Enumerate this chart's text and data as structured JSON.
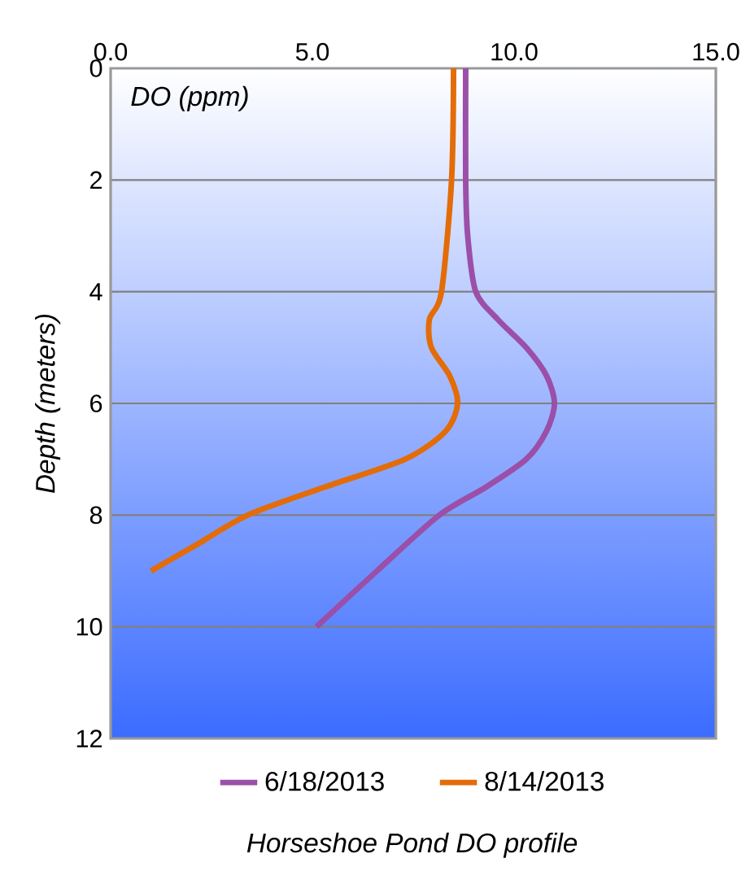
{
  "chart_data": {
    "type": "line",
    "title": "Horseshoe Pond DO profile",
    "xlabel": "DO (ppm)",
    "ylabel": "Depth (meters)",
    "xlim": [
      0,
      15
    ],
    "xticks": [
      {
        "value": 0,
        "label": "0.0"
      },
      {
        "value": 5,
        "label": "5.0"
      },
      {
        "value": 10,
        "label": "10.0"
      },
      {
        "value": 15,
        "label": "15.0"
      }
    ],
    "ylim": [
      12,
      0
    ],
    "yticks": [
      0,
      2,
      4,
      6,
      8,
      10,
      12
    ],
    "grid": "y",
    "legend": "bottom",
    "marker": "none",
    "line_style": "solid",
    "series": [
      {
        "name": "6/18/2013",
        "color": "#9b4fa8",
        "x": [
          8.8,
          8.8,
          8.85,
          9.05,
          9.6,
          10.3,
          10.8,
          11.0,
          10.8,
          10.3,
          9.3,
          8.15,
          6.6,
          5.1
        ],
        "values": [
          0,
          2,
          3,
          4,
          4.5,
          5,
          5.5,
          6,
          6.5,
          7,
          7.5,
          8,
          9,
          10
        ]
      },
      {
        "name": "8/14/2013",
        "color": "#e36c09",
        "x": [
          8.5,
          8.45,
          8.2,
          7.9,
          7.95,
          8.4,
          8.6,
          8.3,
          7.3,
          5.3,
          3.4,
          2.2,
          1.0
        ],
        "values": [
          0,
          2,
          4,
          4.5,
          5,
          5.5,
          6,
          6.5,
          7,
          7.5,
          8,
          8.5,
          9
        ]
      }
    ]
  }
}
